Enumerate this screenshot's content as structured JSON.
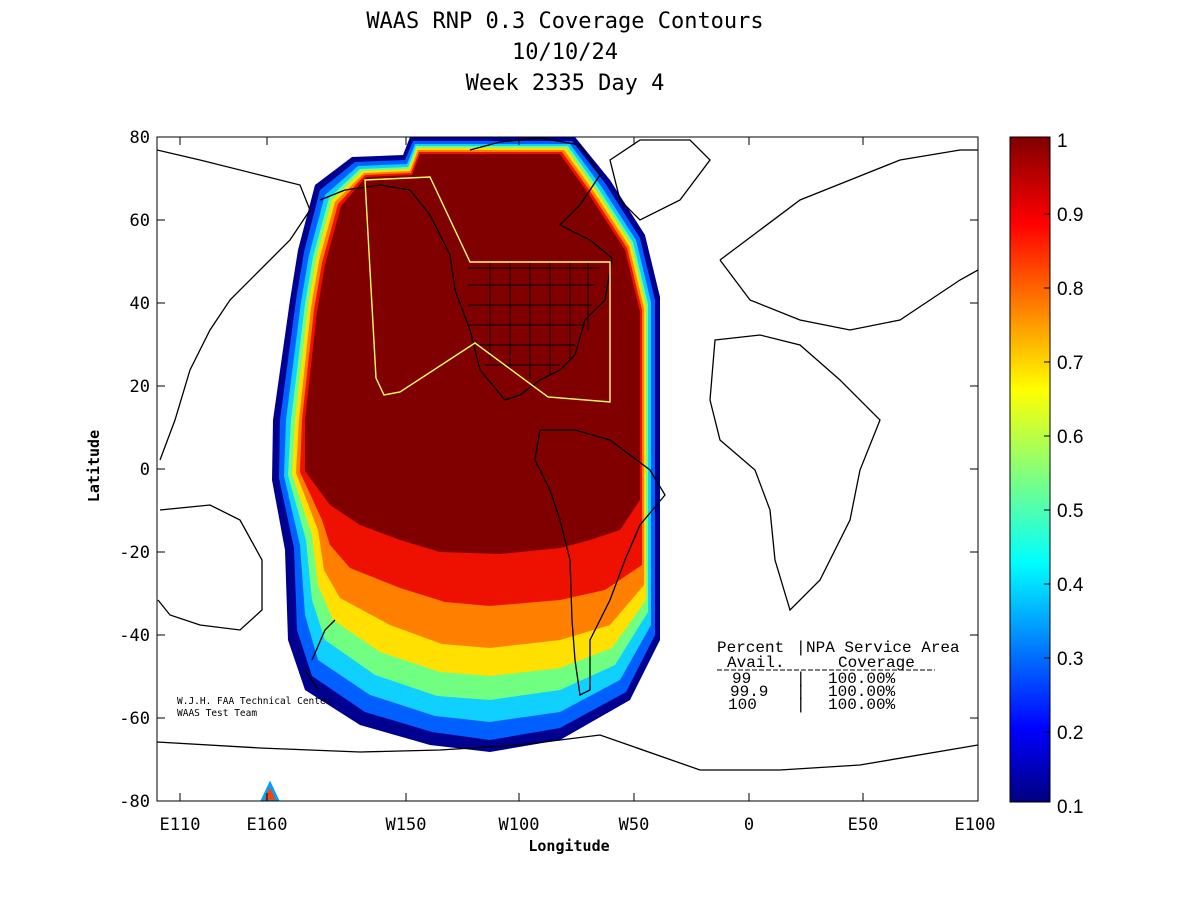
{
  "title": {
    "line1": "WAAS RNP 0.3 Coverage Contours",
    "line2": "10/10/24",
    "line3": "Week 2335 Day 4"
  },
  "axes": {
    "xlabel": "Longitude",
    "ylabel": "Latitude",
    "xticks": [
      "E110",
      "E160",
      "W150",
      "W100",
      "W50",
      "0",
      "E50",
      "E100"
    ],
    "yticks": [
      "80",
      "60",
      "40",
      "20",
      "0",
      "-20",
      "-40",
      "-60",
      "-80"
    ]
  },
  "colorbar": {
    "ticks": [
      "1",
      "0.9",
      "0.8",
      "0.7",
      "0.6",
      "0.5",
      "0.4",
      "0.3",
      "0.2",
      "0.1"
    ],
    "colormap": "jet",
    "range": [
      0.1,
      1
    ]
  },
  "stats": {
    "header_col1": "Percent",
    "header_sep": "|",
    "header_col2": "NPA Service Area",
    "sub_col1": "Avail.",
    "sub_col2": "Coverage",
    "rows": [
      {
        "avail": "99",
        "sep": "|",
        "coverage": "100.00%"
      },
      {
        "avail": "99.9",
        "sep": "|",
        "coverage": "100.00%"
      },
      {
        "avail": "100",
        "sep": "|",
        "coverage": "100.00%"
      }
    ]
  },
  "credit": {
    "line1": "W.J.H. FAA Technical Center",
    "line2": "WAAS Test Team"
  },
  "colors": {
    "coverage_max": "#800000",
    "service_area_outline": "#ffff66",
    "coastline": "#000000"
  }
}
